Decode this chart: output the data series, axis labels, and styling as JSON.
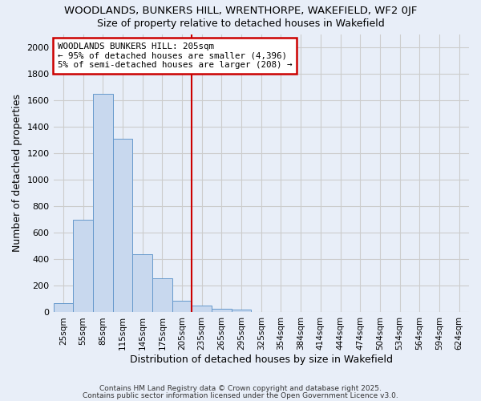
{
  "title1": "WOODLANDS, BUNKERS HILL, WRENTHORPE, WAKEFIELD, WF2 0JF",
  "title2": "Size of property relative to detached houses in Wakefield",
  "xlabel": "Distribution of detached houses by size in Wakefield",
  "ylabel": "Number of detached properties",
  "bar_color": "#c8d8ee",
  "bar_edge_color": "#6699cc",
  "background_color": "#e8eef8",
  "annotation_line1": "WOODLANDS BUNKERS HILL: 205sqm",
  "annotation_line2": "← 95% of detached houses are smaller (4,396)",
  "annotation_line3": "5% of semi-detached houses are larger (208) →",
  "annotation_box_color": "white",
  "annotation_border_color": "#cc0000",
  "vline_color": "#cc0000",
  "categories": [
    "25sqm",
    "55sqm",
    "85sqm",
    "115sqm",
    "145sqm",
    "175sqm",
    "205sqm",
    "235sqm",
    "265sqm",
    "295sqm",
    "325sqm",
    "354sqm",
    "384sqm",
    "414sqm",
    "444sqm",
    "474sqm",
    "504sqm",
    "534sqm",
    "564sqm",
    "594sqm",
    "624sqm"
  ],
  "values": [
    70,
    700,
    1650,
    1310,
    440,
    255,
    90,
    50,
    30,
    20,
    5,
    5,
    0,
    0,
    0,
    0,
    0,
    0,
    0,
    0,
    0
  ],
  "ylim": [
    0,
    2100
  ],
  "yticks": [
    0,
    200,
    400,
    600,
    800,
    1000,
    1200,
    1400,
    1600,
    1800,
    2000
  ],
  "grid_color": "#cccccc",
  "footnote1": "Contains HM Land Registry data © Crown copyright and database right 2025.",
  "footnote2": "Contains public sector information licensed under the Open Government Licence v3.0."
}
